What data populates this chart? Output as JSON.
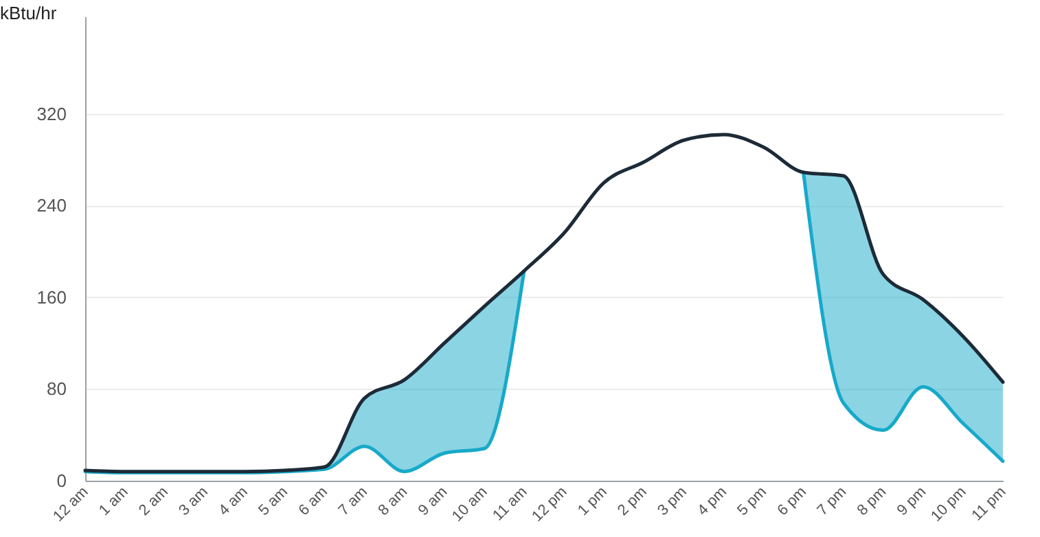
{
  "chart_data": {
    "type": "line",
    "ylabel": "kBtu/hr",
    "categories": [
      "12 am",
      "1 am",
      "2 am",
      "3 am",
      "4 am",
      "5 am",
      "6 am",
      "7 am",
      "8 am",
      "9 am",
      "10 am",
      "11 am",
      "12 pm",
      "1 pm",
      "2 pm",
      "3 pm",
      "4 pm",
      "5 pm",
      "6 pm",
      "7 pm",
      "8 pm",
      "9 pm",
      "10 pm",
      "11 pm"
    ],
    "series": [
      {
        "color": "#17a9c9",
        "values": [
          8,
          7,
          7,
          7,
          7,
          8,
          10,
          30,
          8,
          24,
          28,
          183,
          null,
          null,
          null,
          null,
          null,
          null,
          269,
          68,
          44,
          82,
          50,
          17
        ]
      },
      {
        "color": "#1d2b38",
        "values": [
          9,
          8,
          8,
          8,
          8,
          9,
          12,
          72,
          88,
          120,
          152,
          183,
          216,
          260,
          278,
          297,
          302,
          291,
          269,
          266,
          180,
          158,
          126,
          86
        ]
      }
    ],
    "ylim": [
      0,
      405
    ],
    "yticks": [
      0,
      80,
      160,
      240,
      320
    ],
    "grid": "y",
    "marker": "none",
    "line_style": "solid"
  }
}
